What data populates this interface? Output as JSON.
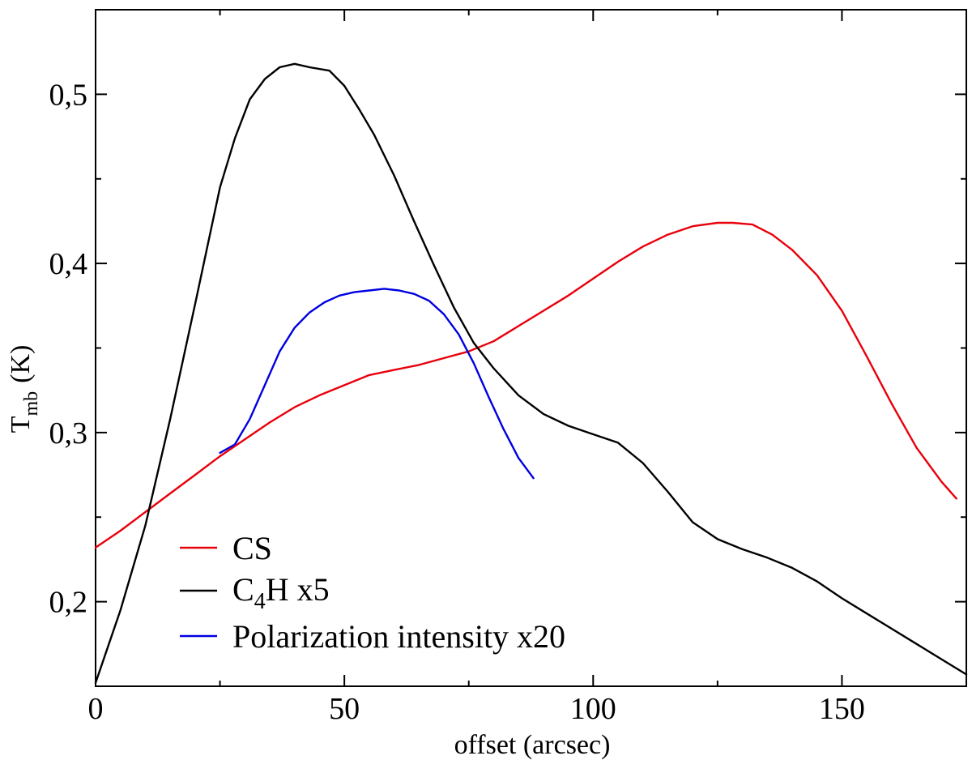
{
  "chart_data": {
    "type": "line",
    "title": "",
    "xlabel": "offset (arcsec)",
    "ylabel": {
      "main": "T",
      "sub": "mb",
      "unit": "(K)"
    },
    "xlim": [
      0,
      175
    ],
    "ylim": [
      0.15,
      0.55
    ],
    "x_ticks": [
      {
        "value": 0,
        "label": "0"
      },
      {
        "value": 50,
        "label": "50"
      },
      {
        "value": 100,
        "label": "100"
      },
      {
        "value": 150,
        "label": "150"
      }
    ],
    "x_minor_ticks": [
      25,
      75,
      125,
      175
    ],
    "y_ticks": [
      {
        "value": 0.2,
        "label": "0,2"
      },
      {
        "value": 0.3,
        "label": "0,3"
      },
      {
        "value": 0.4,
        "label": "0,4"
      },
      {
        "value": 0.5,
        "label": "0,5"
      }
    ],
    "y_minor_ticks": [
      0.25,
      0.35,
      0.45
    ],
    "grid": false,
    "legend": {
      "position": "bottom-left",
      "entries": [
        {
          "series": "CS",
          "label": "CS",
          "color": "#e8000b"
        },
        {
          "series": "C4H x5",
          "main": "C",
          "sub": "4",
          "rest": "H x5",
          "color": "#000000"
        },
        {
          "series": "Polarization intensity x20",
          "label": "Polarization intensity x20",
          "color": "#0000e0"
        }
      ]
    },
    "series": [
      {
        "name": "CS",
        "color": "#e8000b",
        "x": [
          0,
          5,
          10,
          15,
          20,
          25,
          30,
          35,
          40,
          45,
          50,
          55,
          60,
          65,
          70,
          75,
          80,
          85,
          90,
          95,
          100,
          105,
          110,
          115,
          120,
          125,
          128,
          132,
          136,
          140,
          145,
          150,
          155,
          160,
          165,
          170,
          173
        ],
        "y": [
          0.232,
          0.242,
          0.253,
          0.264,
          0.275,
          0.286,
          0.296,
          0.306,
          0.315,
          0.322,
          0.328,
          0.334,
          0.337,
          0.34,
          0.344,
          0.348,
          0.354,
          0.363,
          0.372,
          0.381,
          0.391,
          0.401,
          0.41,
          0.417,
          0.422,
          0.424,
          0.424,
          0.423,
          0.417,
          0.408,
          0.393,
          0.372,
          0.345,
          0.317,
          0.291,
          0.271,
          0.261
        ]
      },
      {
        "name": "C4H x5",
        "color": "#000000",
        "x": [
          0,
          5,
          10,
          15,
          20,
          25,
          28,
          31,
          34,
          37,
          40,
          43,
          47,
          50,
          53,
          56,
          60,
          64,
          68,
          72,
          76,
          80,
          85,
          90,
          95,
          100,
          105,
          110,
          115,
          120,
          125,
          130,
          135,
          140,
          145,
          150,
          155,
          160,
          165,
          170,
          175
        ],
        "y": [
          0.152,
          0.195,
          0.245,
          0.308,
          0.376,
          0.445,
          0.474,
          0.497,
          0.509,
          0.516,
          0.518,
          0.516,
          0.514,
          0.505,
          0.491,
          0.476,
          0.452,
          0.425,
          0.399,
          0.374,
          0.353,
          0.338,
          0.322,
          0.311,
          0.304,
          0.299,
          0.294,
          0.282,
          0.265,
          0.247,
          0.237,
          0.231,
          0.226,
          0.22,
          0.212,
          0.202,
          0.193,
          0.184,
          0.175,
          0.166,
          0.157
        ]
      },
      {
        "name": "Polarization intensity x20",
        "color": "#0000e0",
        "x": [
          25,
          28,
          31,
          34,
          37,
          40,
          43,
          46,
          49,
          52,
          55,
          58,
          61,
          64,
          67,
          70,
          73,
          76,
          79,
          82,
          85,
          88
        ],
        "y": [
          0.288,
          0.293,
          0.308,
          0.328,
          0.348,
          0.362,
          0.371,
          0.377,
          0.381,
          0.383,
          0.384,
          0.385,
          0.384,
          0.382,
          0.378,
          0.37,
          0.358,
          0.341,
          0.321,
          0.302,
          0.285,
          0.273
        ]
      }
    ]
  }
}
